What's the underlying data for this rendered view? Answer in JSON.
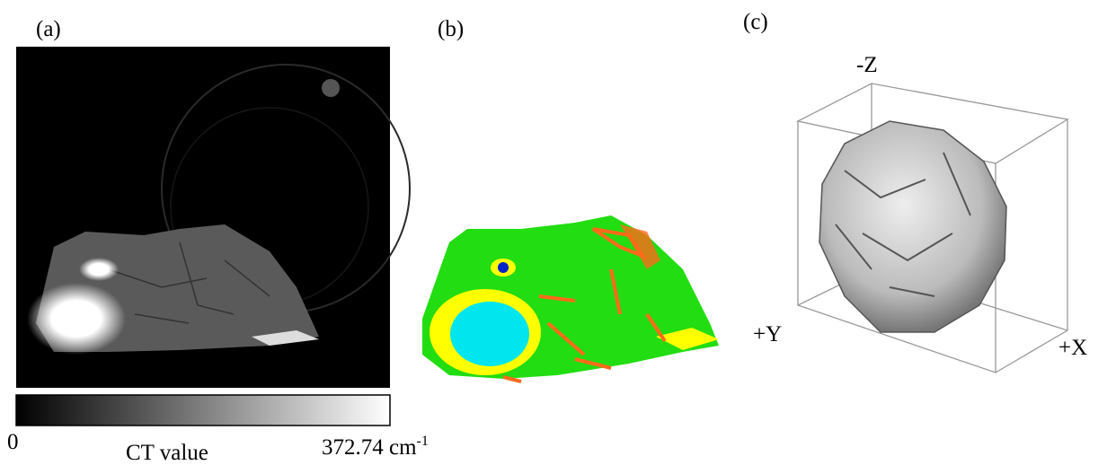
{
  "panels": [
    {
      "label": "(a)"
    },
    {
      "label": "(b)"
    },
    {
      "label": "(c)",
      "axes": [
        "-Z",
        "+Y",
        "+X"
      ]
    }
  ],
  "colorbar": {
    "min_label": "0",
    "title": "CT value",
    "max_label": "372.74 cm",
    "max_label_superscript": "-1"
  }
}
